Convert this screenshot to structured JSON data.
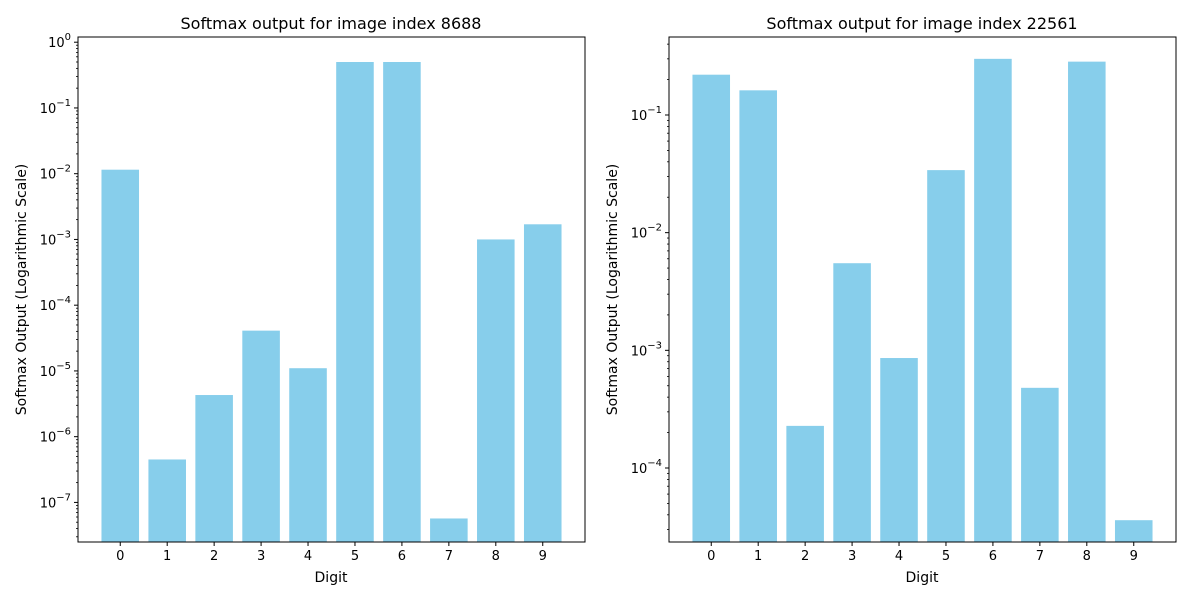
{
  "chart_data": [
    {
      "type": "bar",
      "title": "Softmax output for image index 8688",
      "xlabel": "Digit",
      "ylabel": "Softmax Output (Logarithmic Scale)",
      "yscale": "log",
      "categories": [
        "0",
        "1",
        "2",
        "3",
        "4",
        "5",
        "6",
        "7",
        "8",
        "9"
      ],
      "values": [
        0.0115,
        4.5e-07,
        4.3e-06,
        4.1e-05,
        1.1e-05,
        0.5,
        0.5,
        5.7e-08,
        0.001,
        0.0017
      ],
      "ylim": [
        2.5e-08,
        1.2
      ],
      "yticks": [
        {
          "value": 1e-07,
          "base": "10",
          "exp": "−7"
        },
        {
          "value": 1e-06,
          "base": "10",
          "exp": "−6"
        },
        {
          "value": 1e-05,
          "base": "10",
          "exp": "−5"
        },
        {
          "value": 0.0001,
          "base": "10",
          "exp": "−4"
        },
        {
          "value": 0.001,
          "base": "10",
          "exp": "−3"
        },
        {
          "value": 0.01,
          "base": "10",
          "exp": "−2"
        },
        {
          "value": 0.1,
          "base": "10",
          "exp": "−1"
        },
        {
          "value": 1,
          "base": "10",
          "exp": "0"
        }
      ],
      "color": "#87ceeb",
      "grid": false
    },
    {
      "type": "bar",
      "title": "Softmax output for image index 22561",
      "xlabel": "Digit",
      "ylabel": "Softmax Output (Logarithmic Scale)",
      "yscale": "log",
      "categories": [
        "0",
        "1",
        "2",
        "3",
        "4",
        "5",
        "6",
        "7",
        "8",
        "9"
      ],
      "values": [
        0.22,
        0.162,
        0.000228,
        0.0055,
        0.00086,
        0.034,
        0.3,
        0.00048,
        0.284,
        3.6e-05
      ],
      "ylim": [
        2.35e-05,
        0.46
      ],
      "yticks": [
        {
          "value": 0.0001,
          "base": "10",
          "exp": "−4"
        },
        {
          "value": 0.001,
          "base": "10",
          "exp": "−3"
        },
        {
          "value": 0.01,
          "base": "10",
          "exp": "−2"
        },
        {
          "value": 0.1,
          "base": "10",
          "exp": "−1"
        }
      ],
      "color": "#87ceeb",
      "grid": false
    }
  ]
}
